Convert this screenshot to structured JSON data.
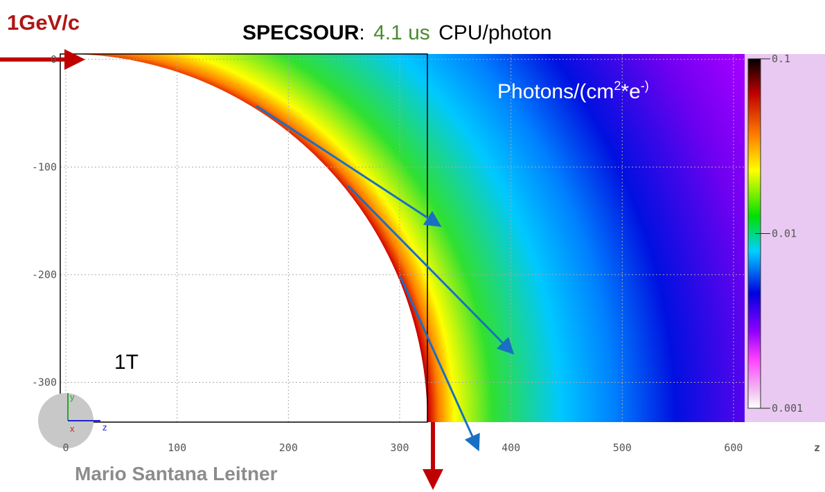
{
  "chart_data": {
    "type": "heatmap",
    "title": {
      "bold": "SPECSOUR",
      "sep": ":",
      "value": "4.1 us",
      "rest": "CPU/photon"
    },
    "beam_label": "1GeV/c",
    "unit_label": {
      "a": "Photons/(cm",
      "b": "2",
      "c": "*e",
      "d": "-)"
    },
    "field_label": "1T",
    "author": "Mario Santana Leitner",
    "x_label": "z",
    "axes_widget": {
      "y": "y",
      "x": "x",
      "z": "z"
    },
    "xlim": [
      -5,
      610
    ],
    "xticks": [
      0,
      100,
      200,
      300,
      400,
      500,
      600
    ],
    "ylim": [
      -337,
      5
    ],
    "yticks": [
      0,
      -100,
      -200,
      -300
    ],
    "grid": true,
    "colorbar": {
      "log": true,
      "lim": [
        0.001,
        0.1
      ],
      "ticks": [
        0.1,
        0.01,
        0.001
      ]
    }
  }
}
